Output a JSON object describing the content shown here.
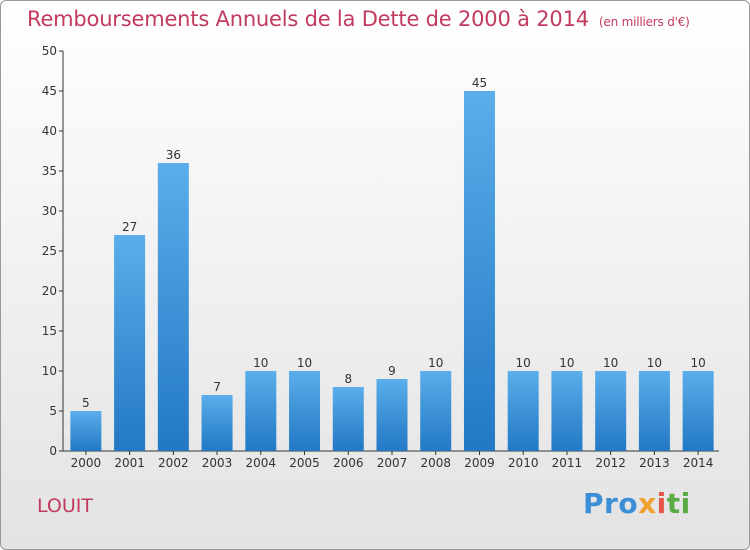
{
  "header": {
    "title": "Remboursements Annuels de la Dette de 2000 à 2014",
    "unit": "(en milliers d'€)"
  },
  "footer": {
    "commune": "LOUIT",
    "logo_text": "Proxiti"
  },
  "colors": {
    "title": "#c23a5e",
    "bar_top": "#5aaeea",
    "bar_bottom": "#2278c4",
    "axis": "#333333",
    "grid": "#d0d0d0"
  },
  "chart_data": {
    "type": "bar",
    "categories": [
      "2000",
      "2001",
      "2002",
      "2003",
      "2004",
      "2005",
      "2006",
      "2007",
      "2008",
      "2009",
      "2010",
      "2011",
      "2012",
      "2013",
      "2014"
    ],
    "values": [
      5,
      27,
      36,
      7,
      10,
      10,
      8,
      9,
      10,
      45,
      10,
      10,
      10,
      10,
      10
    ],
    "title": "Remboursements Annuels de la Dette de 2000 à 2014",
    "xlabel": "",
    "ylabel": "",
    "ylim": [
      0,
      50
    ],
    "yticks": [
      0,
      5,
      10,
      15,
      20,
      25,
      30,
      35,
      40,
      45,
      50
    ],
    "grid": false,
    "data_labels": true
  }
}
